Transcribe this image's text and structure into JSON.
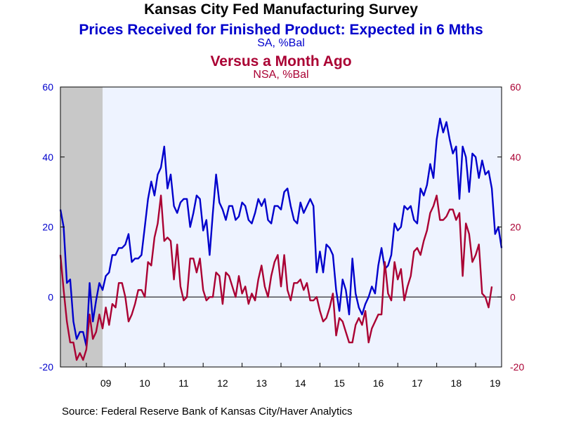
{
  "chart_data": {
    "type": "line",
    "title": "Kansas City Fed Manufacturing Survey",
    "subtitle_left": "Prices Received for Finished Product: Expected in 6 Mths",
    "subtitle_left_units": "SA, %Bal",
    "subtitle_right": "Versus a Month Ago",
    "subtitle_right_units": "NSA, %Bal",
    "source": "Source:  Federal Reserve Bank of Kansas City/Haver Analytics",
    "x_range": [
      2008.3333,
      2019.6667
    ],
    "recession_shading": [
      2008.3333,
      2009.4167
    ],
    "ylim_left": [
      -20,
      60
    ],
    "ylim_right": [
      -20,
      60
    ],
    "yticks_left": [
      "-20",
      "0",
      "20",
      "40",
      "60"
    ],
    "yticks_right": [
      "-20",
      "0",
      "20",
      "40",
      "60"
    ],
    "x_tick_labels": [
      {
        "label": "09",
        "x": 2009.5
      },
      {
        "label": "10",
        "x": 2010.5
      },
      {
        "label": "11",
        "x": 2011.5
      },
      {
        "label": "12",
        "x": 2012.5
      },
      {
        "label": "13",
        "x": 2013.5
      },
      {
        "label": "14",
        "x": 2014.5
      },
      {
        "label": "15",
        "x": 2015.5
      },
      {
        "label": "16",
        "x": 2016.5
      },
      {
        "label": "17",
        "x": 2017.5
      },
      {
        "label": "18",
        "x": 2018.5
      },
      {
        "label": "19",
        "x": 2019.5
      }
    ],
    "series": [
      {
        "axis": "left",
        "color": "#0000cc",
        "start": 2008.3333,
        "step": 0.083333,
        "values": [
          25,
          20,
          4,
          5,
          -7,
          -12,
          -10,
          -10,
          -14,
          4,
          -7,
          -1,
          4,
          2,
          6,
          7,
          12,
          12,
          14,
          14,
          15,
          18,
          10,
          11,
          11,
          12,
          20,
          28,
          33,
          29,
          35,
          37,
          43,
          31,
          35,
          26,
          24,
          27,
          28,
          28,
          20,
          24,
          29,
          28,
          19,
          22,
          12,
          24,
          35,
          27,
          25,
          22,
          26,
          26,
          22,
          23,
          27,
          26,
          22,
          21,
          24,
          28,
          26,
          28,
          22,
          21,
          26,
          26,
          25,
          30,
          31,
          26,
          22,
          21,
          27,
          24,
          26,
          28,
          26,
          7,
          13,
          7,
          15,
          14,
          12,
          2,
          -4,
          5,
          2,
          -5,
          11,
          1,
          -3,
          -5,
          -2,
          0,
          3,
          1,
          9,
          14,
          8,
          9,
          12,
          21,
          19,
          20,
          26,
          25,
          26,
          22,
          21,
          31,
          29,
          32,
          38,
          34,
          45,
          51,
          47,
          50,
          45,
          41,
          43,
          28,
          43,
          40,
          30,
          41,
          40,
          34,
          39,
          35,
          36,
          31,
          18,
          20,
          14
        ]
      },
      {
        "axis": "right",
        "color": "#aa0033",
        "start": 2008.3333,
        "step": 0.083333,
        "values": [
          12,
          2,
          -7,
          -13,
          -13,
          -18,
          -16,
          -18,
          -15,
          -5,
          -12,
          -10,
          -5,
          -9,
          -3,
          -8,
          -2,
          -3,
          4,
          4,
          0,
          -7,
          -5,
          -2,
          2,
          2,
          0,
          10,
          9,
          17,
          21,
          29,
          16,
          17,
          16,
          5,
          15,
          3,
          -1,
          0,
          11,
          11,
          7,
          11,
          2,
          -1,
          0,
          0,
          7,
          6,
          -2,
          7,
          6,
          3,
          0,
          6,
          1,
          3,
          -2,
          1,
          -1,
          5,
          9,
          3,
          0,
          6,
          10,
          12,
          3,
          12,
          2,
          -1,
          4,
          4,
          5,
          2,
          4,
          -1,
          -1,
          0,
          -4,
          -7,
          -6,
          -3,
          1,
          -11,
          -6,
          -7,
          -10,
          -13,
          -13,
          -8,
          -6,
          -8,
          -4,
          -13,
          -9,
          -7,
          -5,
          -5,
          10,
          1,
          -1,
          10,
          5,
          8,
          -1,
          3,
          6,
          13,
          14,
          12,
          16,
          19,
          24,
          26,
          29,
          22,
          22,
          23,
          25,
          25,
          22,
          24,
          6,
          21,
          18,
          10,
          12,
          15,
          1,
          0,
          -3,
          3
        ]
      }
    ]
  }
}
